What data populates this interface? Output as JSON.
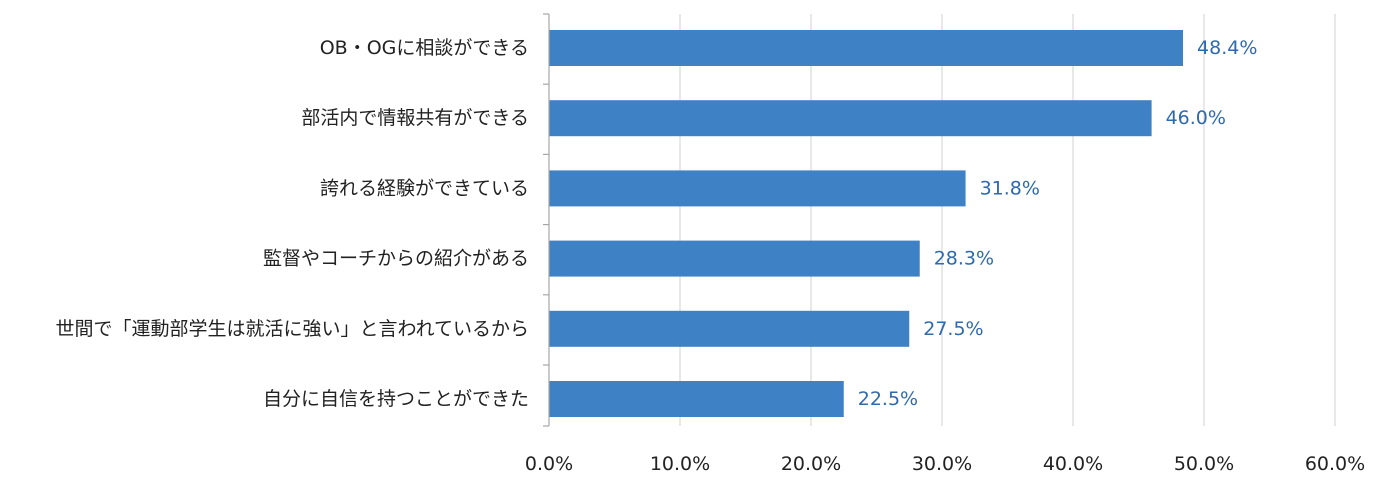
{
  "chart_data": {
    "type": "bar",
    "orientation": "horizontal",
    "categories": [
      "OB・OGに相談ができる",
      "部活内で情報共有ができる",
      "誇れる経験ができている",
      "監督やコーチからの紹介がある",
      "世間で「運動部学生は就活に強い」と言われているから",
      "自分に自信を持つことができた"
    ],
    "values": [
      48.4,
      46.0,
      31.8,
      28.3,
      27.5,
      22.5
    ],
    "value_labels": [
      "48.4%",
      "46.0%",
      "31.8%",
      "28.3%",
      "27.5%",
      "22.5%"
    ],
    "xlim": [
      0,
      60
    ],
    "x_ticks": [
      0,
      10,
      20,
      30,
      40,
      50,
      60
    ],
    "x_tick_labels": [
      "0.0%",
      "10.0%",
      "20.0%",
      "30.0%",
      "40.0%",
      "50.0%",
      "60.0%"
    ],
    "grid": "vertical",
    "legend": "none",
    "colors": {
      "bar": "#3f81c5",
      "value_label": "#2e6aad",
      "grid": "#d0d0d0",
      "axis": "#a6a6a6"
    }
  }
}
